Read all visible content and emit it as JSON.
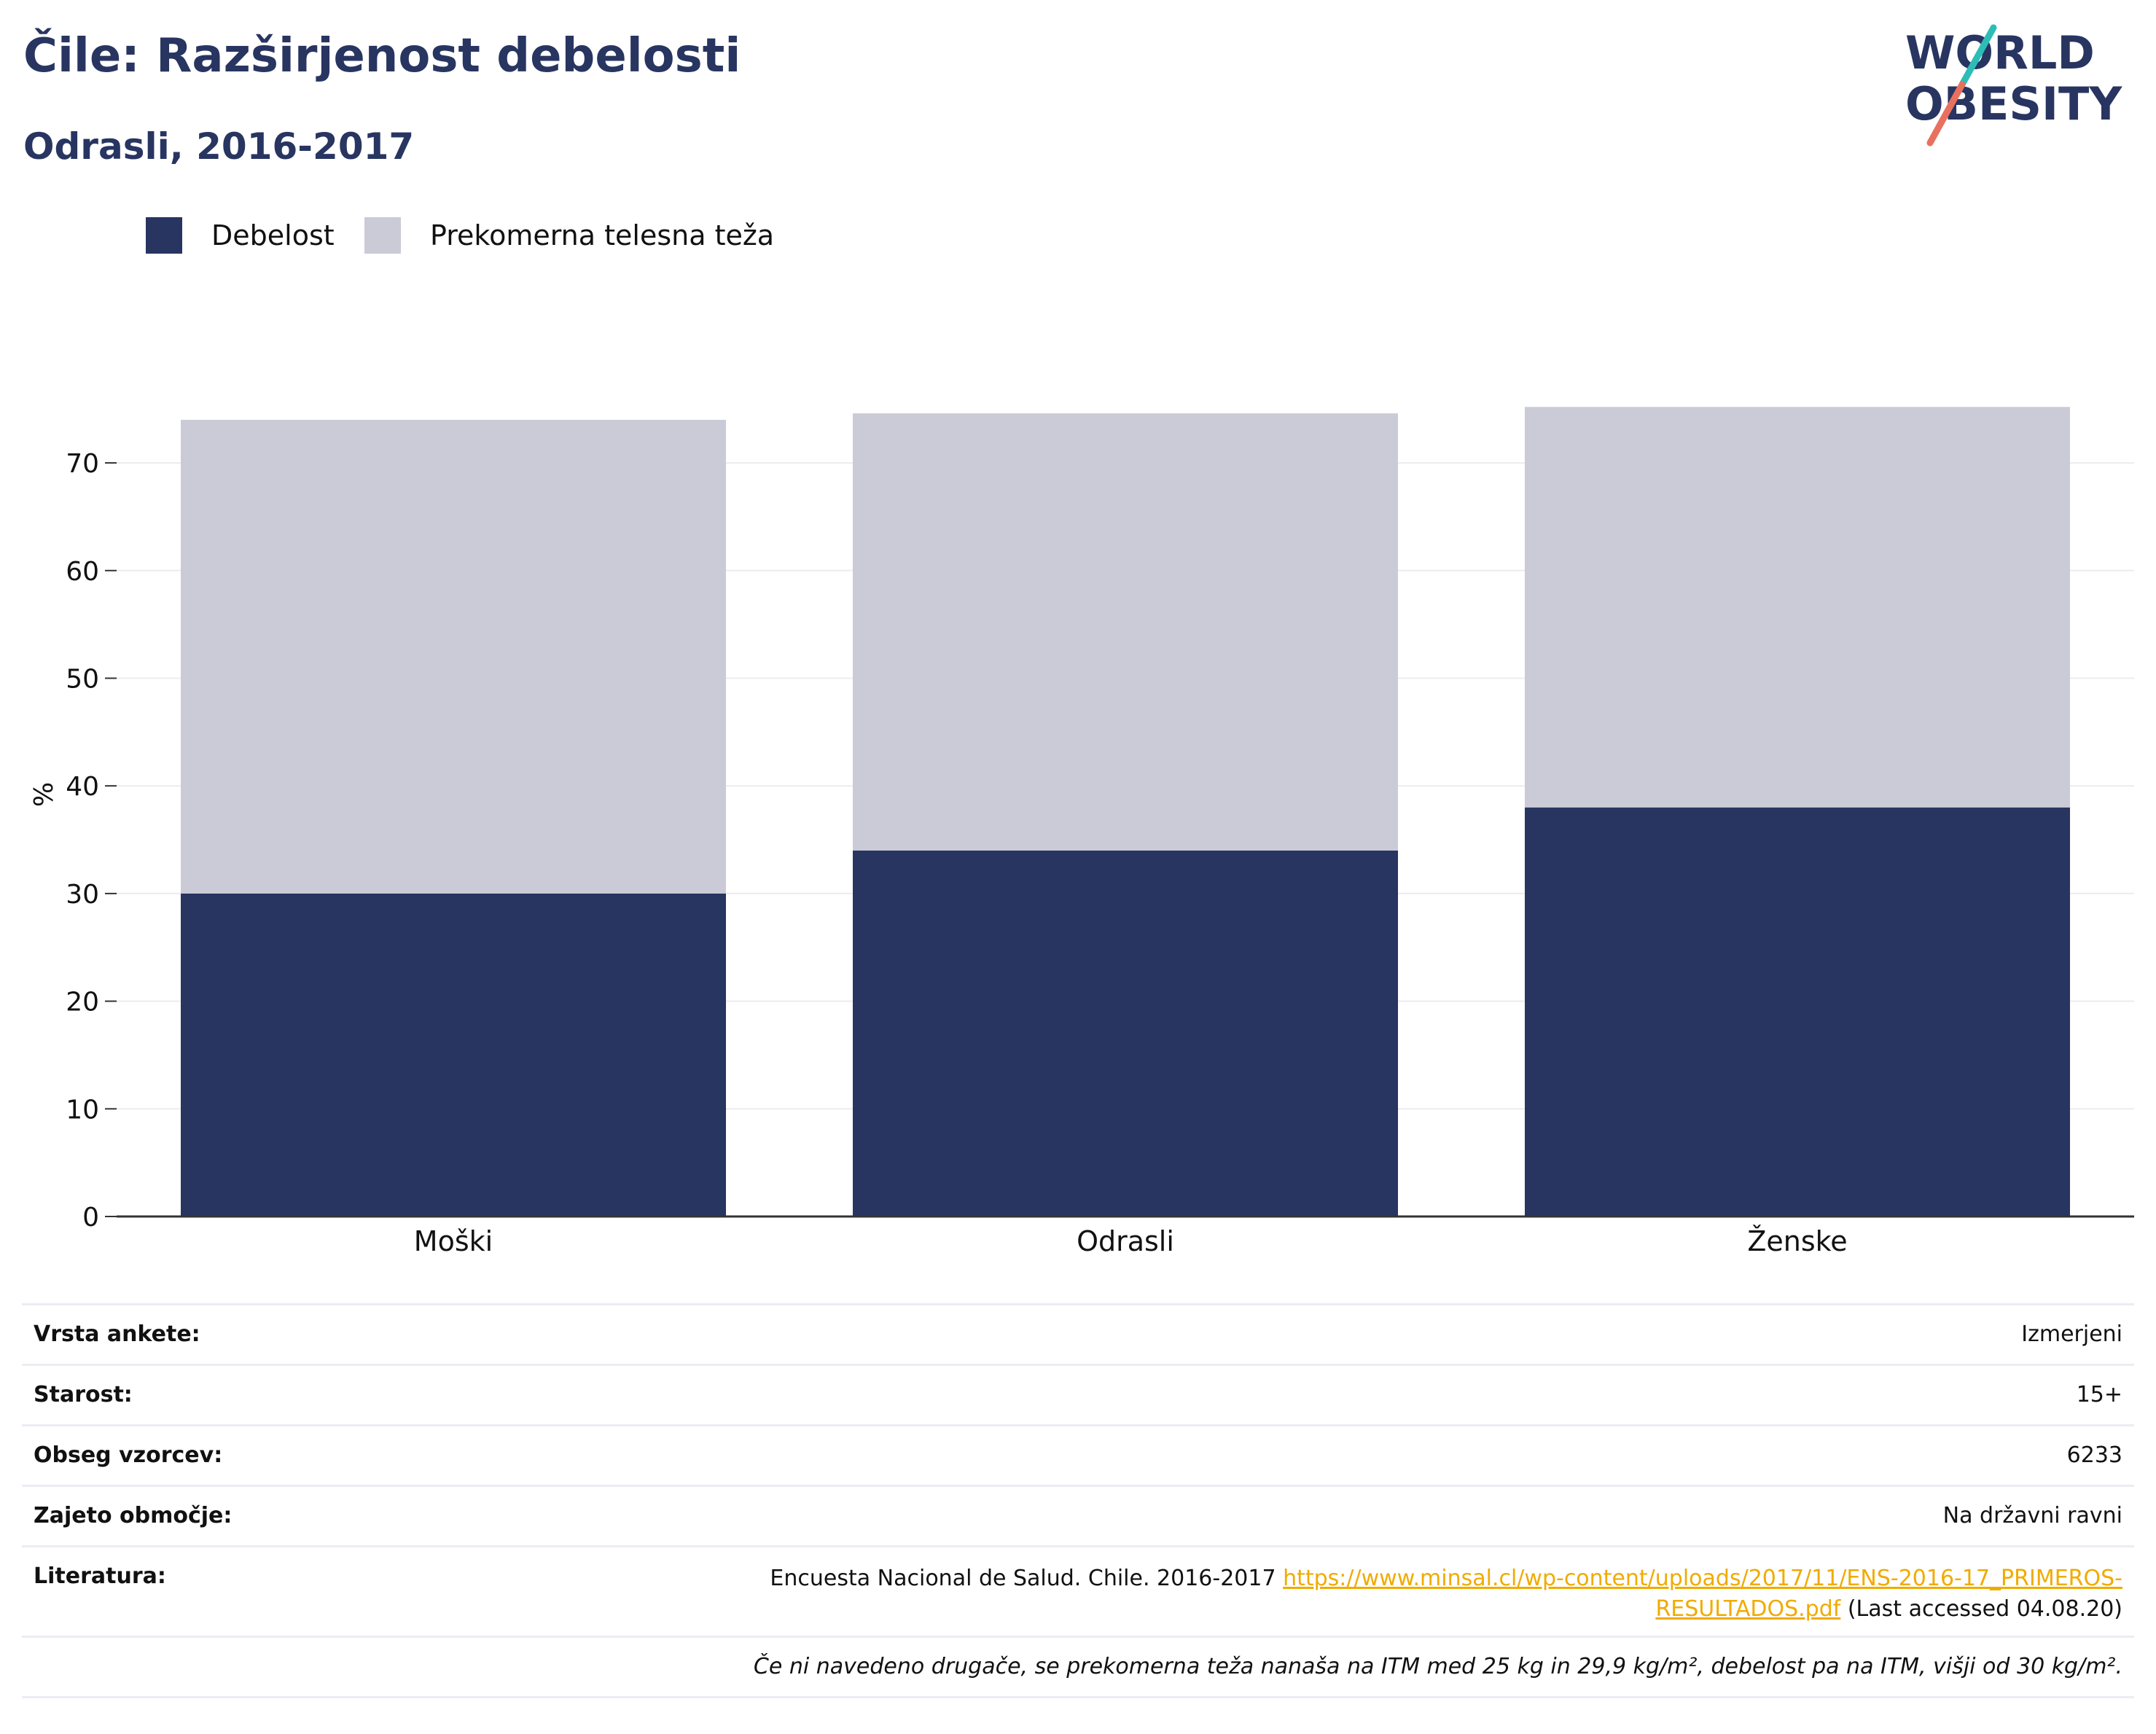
{
  "title": "Čile: Razširjenost debelosti",
  "subtitle": "Odrasli, 2016-2017",
  "logo": {
    "line1": "WORLD",
    "line2": "OBESITY"
  },
  "legend": [
    {
      "label": "Debelost",
      "color": "#283561"
    },
    {
      "label": "Prekomerna telesna teža",
      "color": "#cacbd7"
    }
  ],
  "chart_data": {
    "type": "bar",
    "stacked": true,
    "categories": [
      "Moški",
      "Odrasli",
      "Ženske"
    ],
    "series": [
      {
        "name": "Debelost",
        "color": "#283561",
        "values": [
          30.0,
          34.0,
          38.0
        ]
      },
      {
        "name": "Prekomerna telesna teža",
        "color": "#cacbd7",
        "values": [
          44.0,
          40.6,
          37.2
        ]
      }
    ],
    "ylabel": "%",
    "ylim": [
      0,
      76
    ],
    "yticks": [
      0,
      10,
      20,
      30,
      40,
      50,
      60,
      70
    ],
    "grid": true,
    "legend_position": "top-left"
  },
  "meta": {
    "rows": [
      {
        "key": "Vrsta ankete:",
        "value": "Izmerjeni"
      },
      {
        "key": "Starost:",
        "value": "15+"
      },
      {
        "key": "Obseg vzorcev:",
        "value": "6233"
      },
      {
        "key": "Zajeto območje:",
        "value": "Na državni ravni"
      }
    ],
    "literature": {
      "key": "Literatura:",
      "text": "Encuesta Nacional de Salud. Chile. 2016-2017",
      "link_line1": "https://www.minsal.cl/wp-content/uploads/2017/11/ENS-2016-17_PRIMEROS-",
      "link_line2": "RESULTADOS.pdf",
      "suffix": "(Last accessed 04.08.20)"
    },
    "note": "Če ni navedeno drugače, se prekomerna teža nanaša na ITM med 25 kg in 29,9 kg/m², debelost pa na ITM, višji od 30 kg/m²."
  }
}
